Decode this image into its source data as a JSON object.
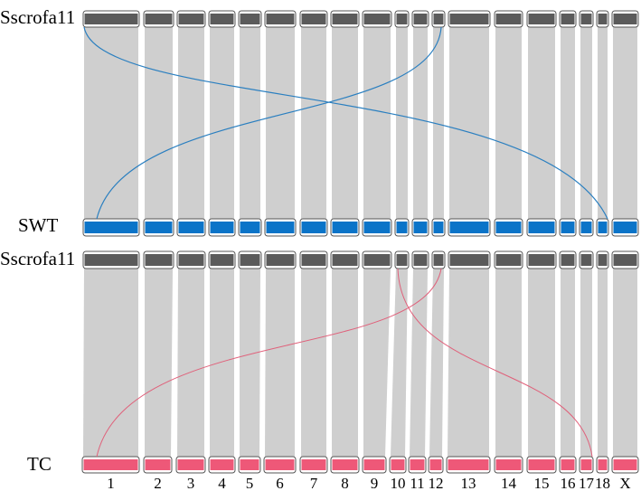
{
  "tracks": [
    {
      "label": "Sscrofa11"
    },
    {
      "label": "SWT"
    },
    {
      "label": "Sscrofa11"
    },
    {
      "label": "TC"
    }
  ],
  "chromosomes": [
    "1",
    "2",
    "3",
    "4",
    "5",
    "6",
    "7",
    "8",
    "9",
    "10",
    "11",
    "12",
    "13",
    "14",
    "15",
    "16",
    "17",
    "18",
    "X"
  ]
}
